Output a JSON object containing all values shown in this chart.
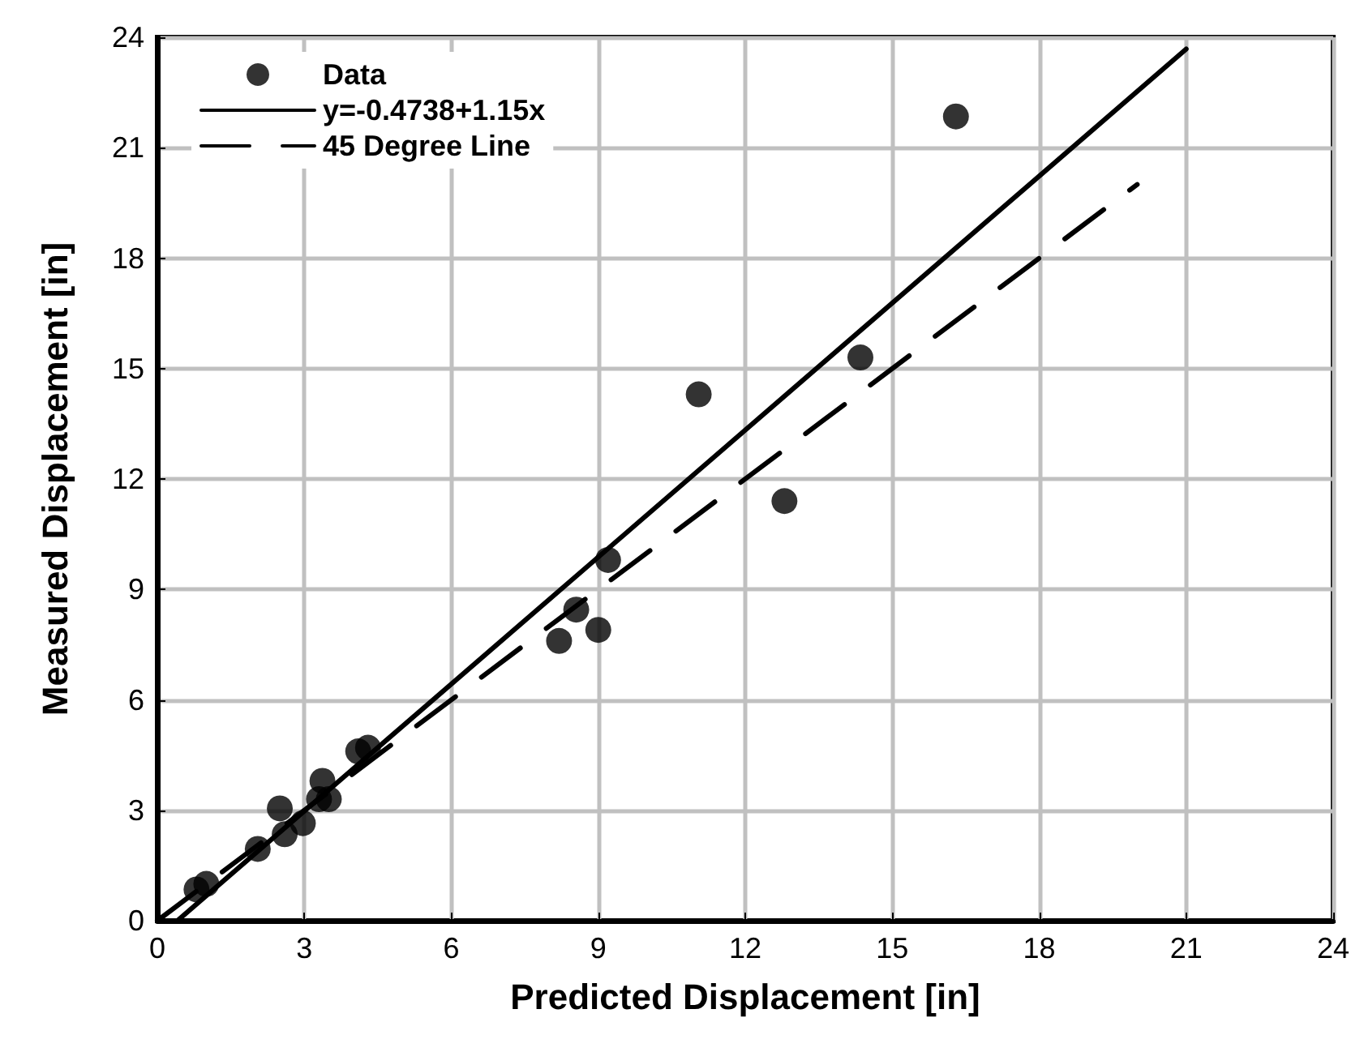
{
  "chart_data": {
    "type": "scatter",
    "xlabel": "Predicted Displacement [in]",
    "ylabel": "Measured Displacement [in]",
    "xlim": [
      0,
      24
    ],
    "ylim": [
      0,
      24
    ],
    "xticks": [
      0,
      3,
      6,
      9,
      12,
      15,
      18,
      21,
      24
    ],
    "yticks": [
      0,
      3,
      6,
      9,
      12,
      15,
      18,
      21,
      24
    ],
    "grid": true,
    "legend": "top left",
    "series": [
      {
        "name": "Data",
        "color": "#000000",
        "marker": "circle",
        "x": [
          0.8,
          1.0,
          2.05,
          2.5,
          2.6,
          2.97,
          3.3,
          3.37,
          3.5,
          4.1,
          4.3,
          8.2,
          8.55,
          9.0,
          9.2,
          11.05,
          12.8,
          14.35,
          16.3
        ],
        "values": [
          0.85,
          1.0,
          1.95,
          3.05,
          2.35,
          2.65,
          3.3,
          3.8,
          3.3,
          4.6,
          4.7,
          7.6,
          8.45,
          7.9,
          9.8,
          14.3,
          11.4,
          15.3,
          21.85
        ]
      },
      {
        "name": "y=-0.4738+1.15x",
        "type": "line",
        "color": "#000000",
        "line_style": "solid",
        "marker": "none",
        "x": [
          0.41,
          21
        ],
        "values": [
          0,
          23.68
        ]
      },
      {
        "name": "45 Degree Line",
        "type": "line",
        "color": "#000000",
        "line_style": "dashed",
        "marker": "none",
        "x": [
          0,
          20
        ],
        "values": [
          0,
          20
        ]
      }
    ]
  }
}
